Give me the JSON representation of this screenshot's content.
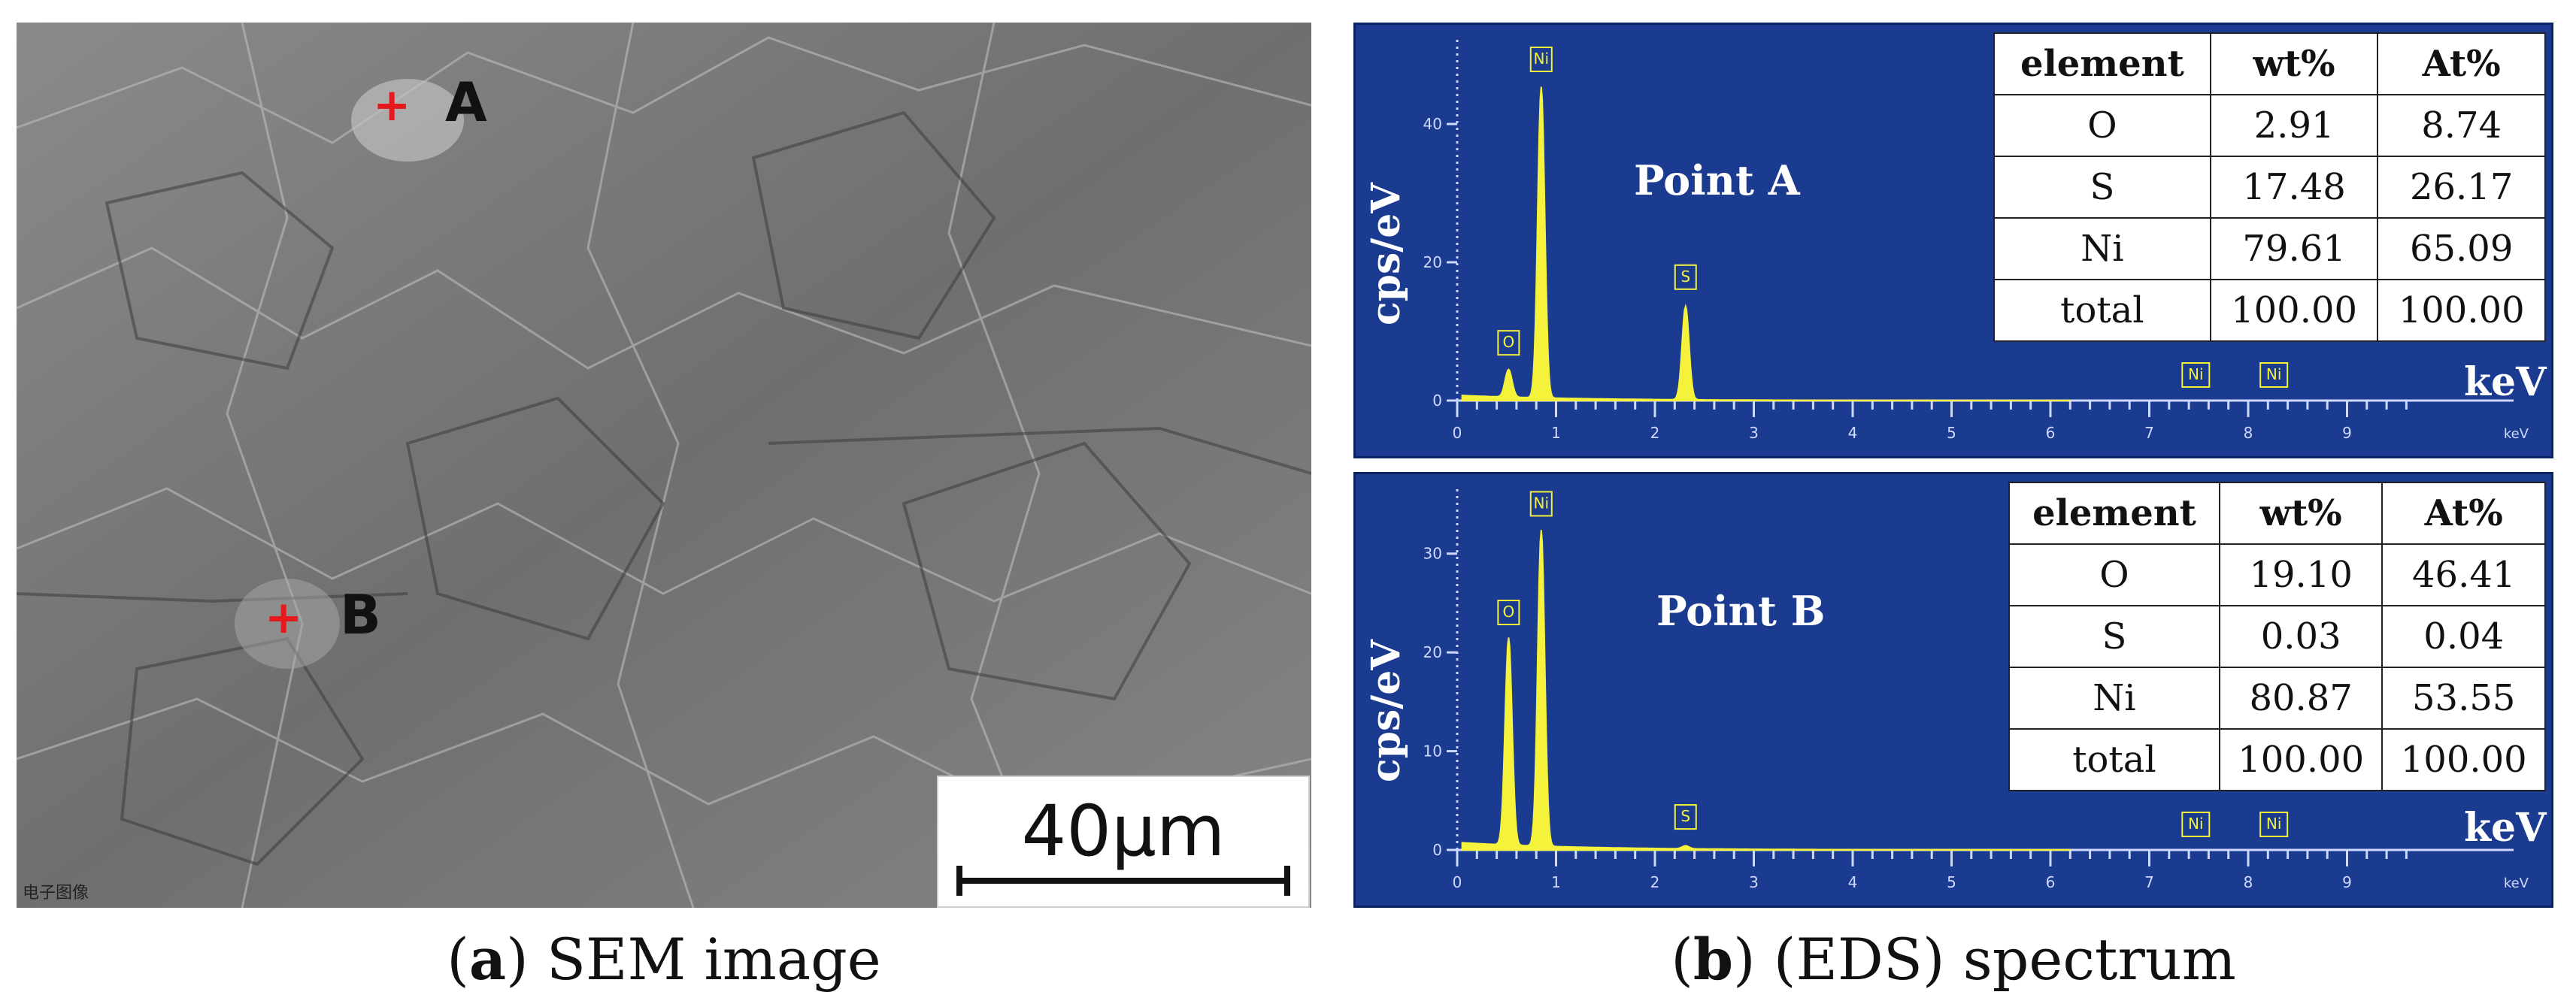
{
  "panel_a": {
    "point_a_label": "A",
    "point_b_label": "B",
    "footer_tag": "电子图像",
    "scale_bar": "40μm",
    "caption_letter": "a",
    "caption_text": " SEM image"
  },
  "panel_b": {
    "caption_letter": "b",
    "caption_text": " (EDS) spectrum"
  },
  "chart_data": [
    {
      "type": "line",
      "title": "Point A",
      "xlabel": "keV",
      "ylabel": "cps/eV",
      "xlim": [
        0,
        10
      ],
      "ylim": [
        0,
        50
      ],
      "x_ticks": [
        "0",
        "1",
        "2",
        "3",
        "4",
        "5",
        "6",
        "7",
        "8",
        "9"
      ],
      "y_ticks": [
        "0",
        "20",
        "40"
      ],
      "peaks": [
        {
          "label": "O",
          "x": 0.52,
          "y": 4.0
        },
        {
          "label": "Ni",
          "x": 0.85,
          "y": 45
        },
        {
          "label": "S",
          "x": 2.31,
          "y": 13.5
        }
      ],
      "marker_labels": [
        {
          "label": "Ni",
          "x": 7.47
        },
        {
          "label": "Ni",
          "x": 8.26
        }
      ],
      "table": {
        "columns": [
          "element",
          "wt%",
          "At%"
        ],
        "rows": [
          [
            "O",
            "2.91",
            "8.74"
          ],
          [
            "S",
            "17.48",
            "26.17"
          ],
          [
            "Ni",
            "79.61",
            "65.09"
          ],
          [
            "total",
            "100.00",
            "100.00"
          ]
        ]
      }
    },
    {
      "type": "line",
      "title": "Point B",
      "xlabel": "keV",
      "ylabel": "cps/eV",
      "xlim": [
        0,
        10
      ],
      "ylim": [
        0,
        35
      ],
      "x_ticks": [
        "0",
        "1",
        "2",
        "3",
        "4",
        "5",
        "6",
        "7",
        "8",
        "9"
      ],
      "y_ticks": [
        "0",
        "10",
        "20",
        "30"
      ],
      "peaks": [
        {
          "label": "O",
          "x": 0.52,
          "y": 21
        },
        {
          "label": "Ni",
          "x": 0.85,
          "y": 32
        },
        {
          "label": "S",
          "x": 2.31,
          "y": 0.3
        }
      ],
      "marker_labels": [
        {
          "label": "Ni",
          "x": 7.47
        },
        {
          "label": "Ni",
          "x": 8.26
        }
      ],
      "table": {
        "columns": [
          "element",
          "wt%",
          "At%"
        ],
        "rows": [
          [
            "O",
            "19.10",
            "46.41"
          ],
          [
            "S",
            "0.03",
            "0.04"
          ],
          [
            "Ni",
            "80.87",
            "53.55"
          ],
          [
            "total",
            "100.00",
            "100.00"
          ]
        ]
      }
    }
  ]
}
